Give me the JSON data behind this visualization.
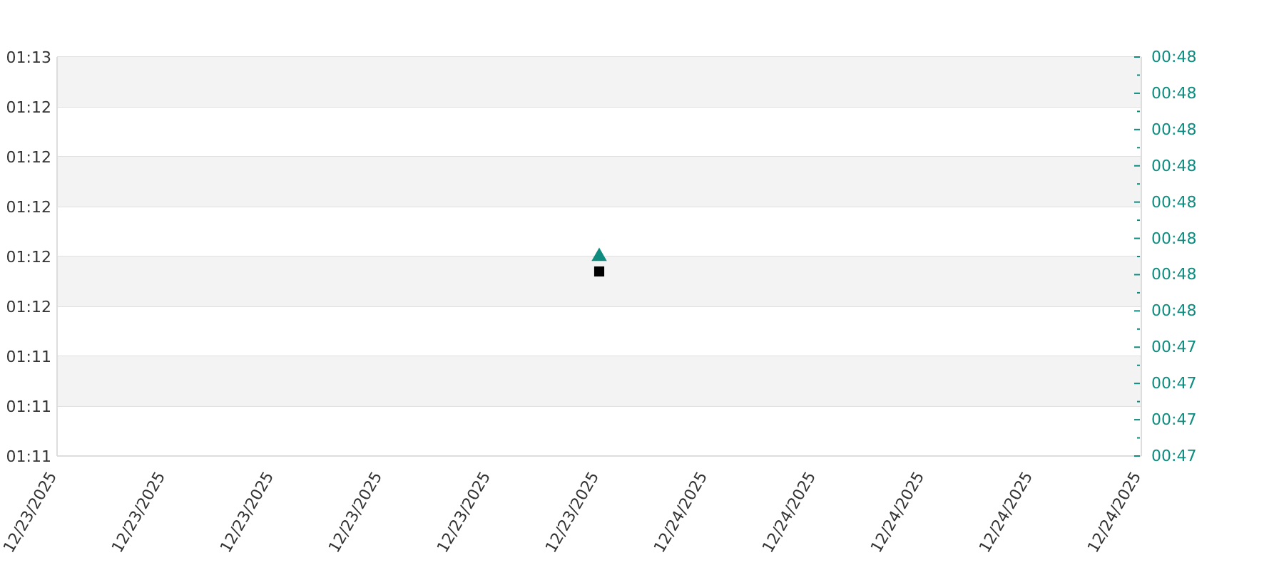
{
  "chart_data": {
    "type": "scatter",
    "x": [
      "2025-12-23T23:00"
    ],
    "series": [
      {
        "color": "#000000",
        "marker": "square",
        "values": [
          71.74
        ]
      },
      {
        "color": "#0e8c80",
        "marker": "triangle",
        "axis": "y2",
        "values": [
          47.64
        ]
      }
    ],
    "xlim": [
      "2025-12-23T13:00",
      "2025-12-24T09:00"
    ],
    "xticks": [
      {
        "value": "2025-12-23T13:00",
        "label": "12/23/2025"
      },
      {
        "value": "2025-12-23T15:00",
        "label": "12/23/2025"
      },
      {
        "value": "2025-12-23T17:00",
        "label": "12/23/2025"
      },
      {
        "value": "2025-12-23T19:00",
        "label": "12/23/2025"
      },
      {
        "value": "2025-12-23T21:00",
        "label": "12/23/2025"
      },
      {
        "value": "2025-12-23T23:00",
        "label": "12/23/2025"
      },
      {
        "value": "2025-12-24T01:00",
        "label": "12/24/2025"
      },
      {
        "value": "2025-12-24T03:00",
        "label": "12/24/2025"
      },
      {
        "value": "2025-12-24T05:00",
        "label": "12/24/2025"
      },
      {
        "value": "2025-12-24T07:00",
        "label": "12/24/2025"
      },
      {
        "value": "2025-12-24T09:00",
        "label": "12/24/2025"
      }
    ],
    "ylim": [
      71.0,
      72.6
    ],
    "yticks": [
      {
        "value": 71.0,
        "label": "01:11"
      },
      {
        "value": 71.2,
        "label": "01:11"
      },
      {
        "value": 71.4,
        "label": "01:11"
      },
      {
        "value": 71.6,
        "label": "01:12"
      },
      {
        "value": 71.8,
        "label": "01:12"
      },
      {
        "value": 72.0,
        "label": "01:12"
      },
      {
        "value": 72.2,
        "label": "01:12"
      },
      {
        "value": 72.4,
        "label": "01:12"
      },
      {
        "value": 72.6,
        "label": "01:13"
      }
    ],
    "y2lim": [
      47.2,
      48.08
    ],
    "y2ticks": [
      {
        "value": 47.2,
        "label": "00:47"
      },
      {
        "value": 47.24,
        "label": null
      },
      {
        "value": 47.28,
        "label": "00:47"
      },
      {
        "value": 47.32,
        "label": null
      },
      {
        "value": 47.36,
        "label": "00:47"
      },
      {
        "value": 47.4,
        "label": null
      },
      {
        "value": 47.44,
        "label": "00:47"
      },
      {
        "value": 47.48,
        "label": null
      },
      {
        "value": 47.52,
        "label": "00:48"
      },
      {
        "value": 47.56,
        "label": null
      },
      {
        "value": 47.6,
        "label": "00:48"
      },
      {
        "value": 47.64,
        "label": null
      },
      {
        "value": 47.68,
        "label": "00:48"
      },
      {
        "value": 47.72,
        "label": null
      },
      {
        "value": 47.76,
        "label": "00:48"
      },
      {
        "value": 47.8,
        "label": null
      },
      {
        "value": 47.84,
        "label": "00:48"
      },
      {
        "value": 47.88,
        "label": null
      },
      {
        "value": 47.92,
        "label": "00:48"
      },
      {
        "value": 47.96,
        "label": null
      },
      {
        "value": 48.0,
        "label": "00:48"
      },
      {
        "value": 48.04,
        "label": null
      },
      {
        "value": 48.08,
        "label": "00:48"
      }
    ],
    "grid": "y",
    "bands": [
      {
        "axis": "y",
        "from": 71.2,
        "to": 71.4,
        "color": "#f3f3f3"
      },
      {
        "axis": "y",
        "from": 71.6,
        "to": 71.8,
        "color": "#f3f3f3"
      },
      {
        "axis": "y",
        "from": 72.0,
        "to": 72.2,
        "color": "#f3f3f3"
      },
      {
        "axis": "y",
        "from": 72.4,
        "to": 72.6,
        "color": "#f3f3f3"
      }
    ]
  }
}
